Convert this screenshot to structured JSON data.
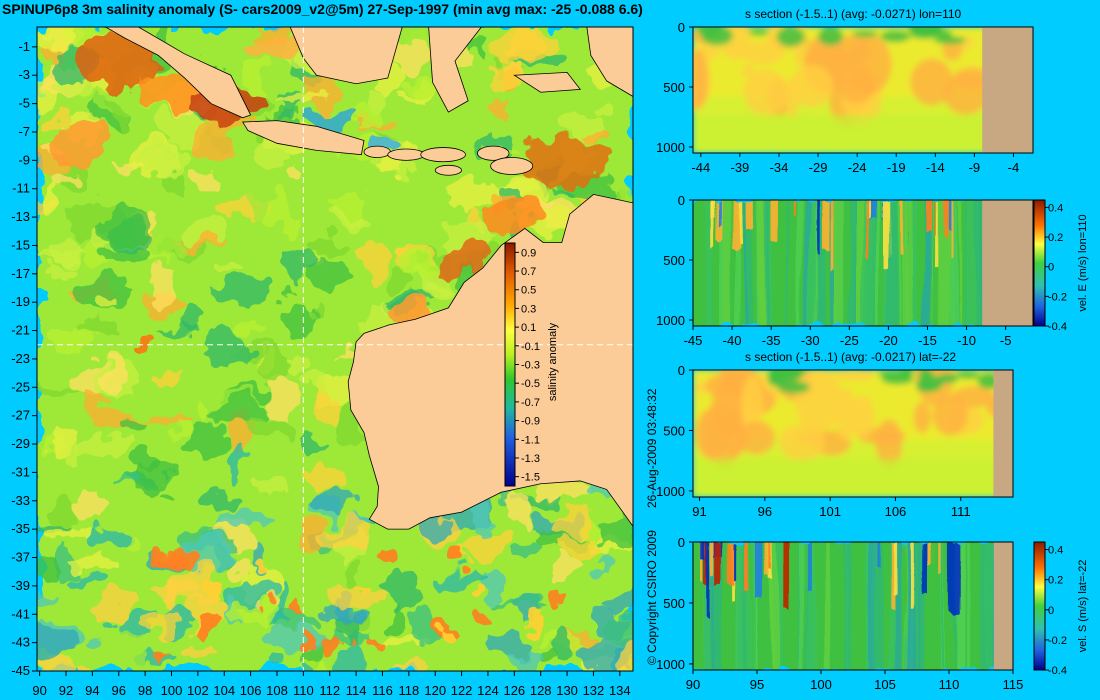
{
  "title": "SPINUP6p8 3m salinity anomaly (S- cars2009_v2@5m) 27-Sep-1997 (min avg max: -25 -0.088 6.6)",
  "copyright": "© Copyright CSIRO 2009",
  "timestamp": "26-Aug-2009 03:48:32",
  "colors": {
    "background": "#00ccff",
    "land": "#fccc98",
    "section_land": "#c8a882",
    "frame": "#000000"
  },
  "chart_data": [
    {
      "type": "heatmap",
      "id": "map",
      "x_ticks": [
        "90",
        "92",
        "94",
        "96",
        "98",
        "100",
        "102",
        "104",
        "106",
        "108",
        "110",
        "112",
        "114",
        "116",
        "118",
        "120",
        "122",
        "124",
        "126",
        "128",
        "130",
        "132",
        "134"
      ],
      "y_ticks": [
        "-1",
        "-3",
        "-5",
        "-7",
        "-9",
        "-11",
        "-13",
        "-15",
        "-17",
        "-19",
        "-21",
        "-23",
        "-25",
        "-27",
        "-29",
        "-31",
        "-33",
        "-35",
        "-37",
        "-39",
        "-41",
        "-43",
        "-45"
      ],
      "xlim": [
        89.8,
        135
      ],
      "ylim": [
        -45,
        0.4
      ],
      "crosshair": {
        "lon": 110,
        "lat": -22
      },
      "colorbar": {
        "label": "salinity anomaly",
        "ticks": [
          "0.9",
          "0.7",
          "0.5",
          "0.3",
          "0.1",
          "-0.1",
          "-0.3",
          "-0.5",
          "-0.7",
          "-0.9",
          "-1.1",
          "-1.3",
          "-1.5"
        ],
        "range": [
          -1.6,
          1.0
        ]
      }
    },
    {
      "type": "heatmap",
      "id": "s_lon110",
      "title": "s section (-1.5..1) (avg: -0.0271) lon=110",
      "x_ticks": [
        "-44",
        "-39",
        "-34",
        "-29",
        "-24",
        "-19",
        "-14",
        "-9",
        "-4"
      ],
      "y_ticks": [
        "0",
        "500",
        "1000"
      ],
      "xlim": [
        -45,
        -1.5
      ],
      "ylim": [
        0,
        1050
      ],
      "land_from": -8.0
    },
    {
      "type": "heatmap",
      "id": "u_lon110",
      "title": "",
      "x_ticks": [
        "-45",
        "-40",
        "-35",
        "-30",
        "-25",
        "-20",
        "-15",
        "-10",
        "-5"
      ],
      "y_ticks": [
        "0",
        "500",
        "1000"
      ],
      "xlim": [
        -45,
        -1.5
      ],
      "ylim": [
        0,
        1050
      ],
      "land_from": -8.0,
      "colorbar": {
        "label": "vel. E (m/s) lon=110",
        "ticks": [
          "0.4",
          "0.2",
          "0",
          "-0.2",
          "-0.4"
        ],
        "range": [
          -0.4,
          0.45
        ]
      }
    },
    {
      "type": "heatmap",
      "id": "s_lat22",
      "title": "s section (-1.5..1) (avg: -0.0217) lat=-22",
      "x_ticks": [
        "91",
        "96",
        "101",
        "106",
        "111"
      ],
      "y_ticks": [
        "0",
        "500",
        "1000"
      ],
      "xlim": [
        90.5,
        115
      ],
      "ylim": [
        0,
        1050
      ],
      "land_from": 113.5
    },
    {
      "type": "heatmap",
      "id": "v_lat22",
      "title": "",
      "x_ticks": [
        "90",
        "95",
        "100",
        "105",
        "110",
        "115"
      ],
      "y_ticks": [
        "0",
        "500",
        "1000"
      ],
      "xlim": [
        90,
        115
      ],
      "ylim": [
        0,
        1050
      ],
      "land_from": 113.5,
      "colorbar": {
        "label": "vel. S (m/s) lat=-22",
        "ticks": [
          "0.4",
          "0.2",
          "0",
          "-0.2",
          "-0.4"
        ],
        "range": [
          -0.4,
          0.45
        ]
      }
    }
  ]
}
